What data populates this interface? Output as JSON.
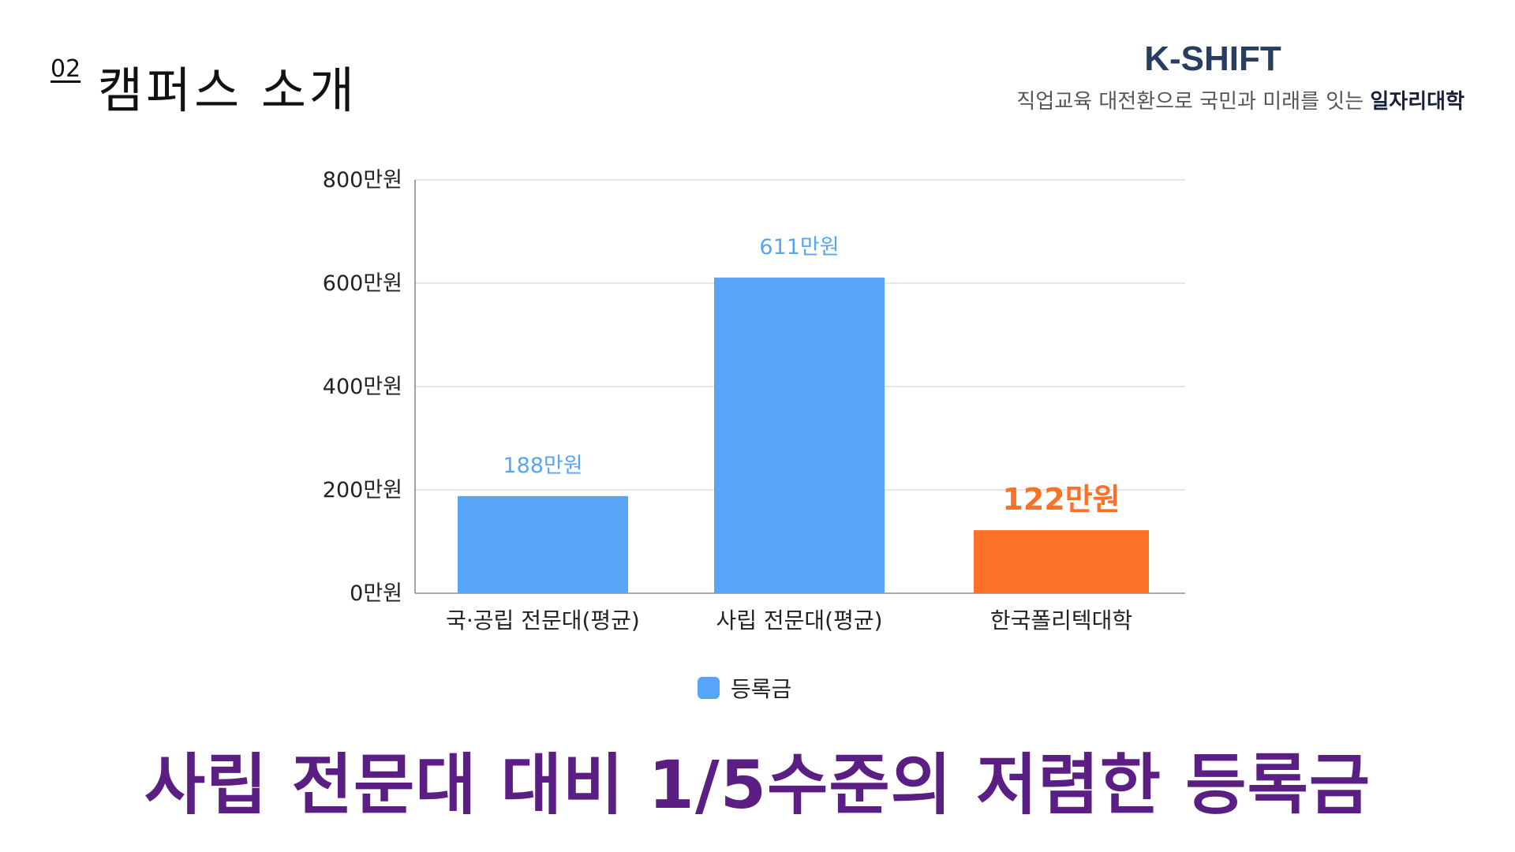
{
  "header": {
    "section_number": "02",
    "section_title": "캠퍼스 소개",
    "brand": "K-SHIFT",
    "tagline_main": "직업교육 대전환으로 국민과 미래를 잇는 ",
    "tagline_highlight": "일자리대학"
  },
  "colors": {
    "bar_default": "#57a5f6",
    "bar_highlight": "#fd7126",
    "headline": "#5b1f84",
    "brand": "#273e5e"
  },
  "chart_data": {
    "type": "bar",
    "categories": [
      "국·공립 전문대(평균)",
      "사립 전문대(평균)",
      "한국폴리텍대학"
    ],
    "series": [
      {
        "name": "등록금",
        "values": [
          188,
          611,
          122
        ]
      }
    ],
    "data_labels": [
      "188만원",
      "611만원",
      "122만원"
    ],
    "highlight_index": 2,
    "ylim": [
      0,
      800
    ],
    "yticks": [
      0,
      200,
      400,
      600,
      800
    ],
    "ytick_labels": [
      "0만원",
      "200만원",
      "400만원",
      "600만원",
      "800만원"
    ],
    "grid": true,
    "legend_position": "bottom"
  },
  "legend": {
    "label": "등록금"
  },
  "headline": "사립 전문대 대비 1/5수준의 저렴한 등록금"
}
